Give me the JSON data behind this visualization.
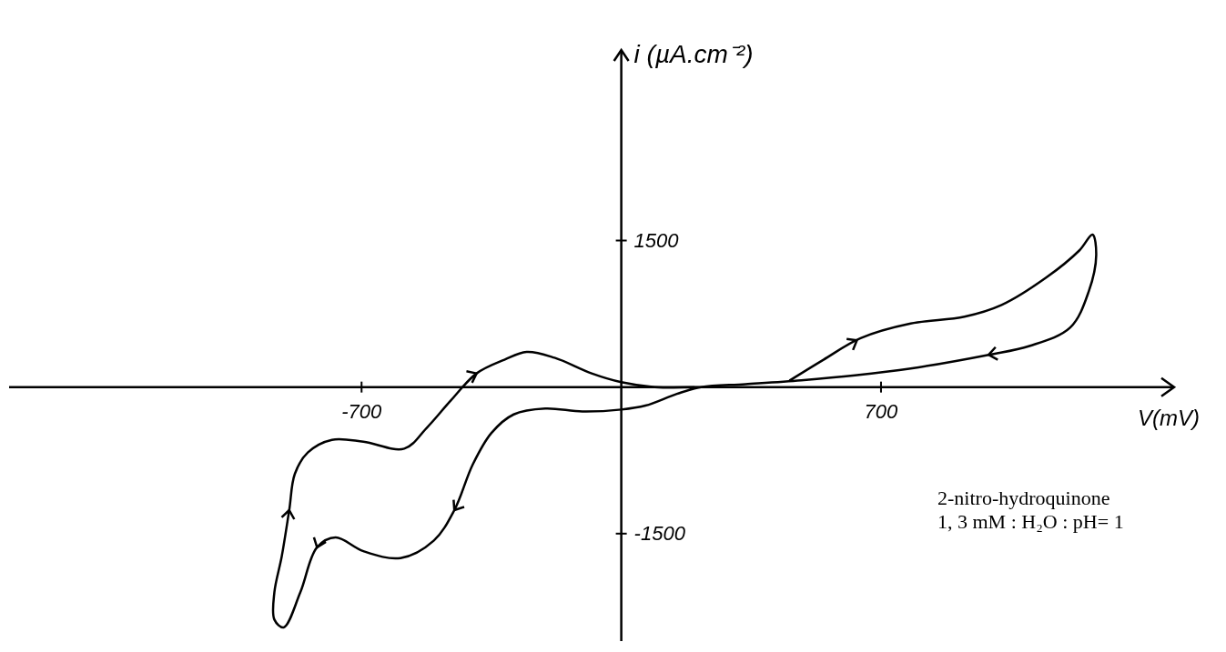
{
  "chart_data": {
    "type": "line",
    "xlabel": "V(mV)",
    "ylabel": "i (µA.cm⁻²)",
    "xlim": [
      -1650,
      1490
    ],
    "ylim": [
      -2600,
      3450
    ],
    "xticks": [
      -700,
      700
    ],
    "yticks": [
      1500,
      -1500
    ],
    "color": "#000000",
    "grid": false,
    "x": [
      455,
      545,
      645,
      780,
      925,
      1025,
      1145,
      1235,
      1270,
      1280,
      1260,
      1210,
      1100,
      990,
      780,
      630,
      485,
      335,
      215,
      150,
      65,
      0,
      -105,
      -205,
      -290,
      -350,
      -400,
      -450,
      -505,
      -595,
      -695,
      -770,
      -820,
      -865,
      -910,
      -935,
      -935,
      -915,
      -895,
      -880,
      -845,
      -780,
      -695,
      -585,
      -525,
      -460,
      -390,
      -315,
      -255,
      -180,
      -80,
      0,
      90,
      215
    ],
    "values": [
      70,
      280,
      500,
      650,
      720,
      840,
      1120,
      1400,
      1560,
      1350,
      980,
      610,
      420,
      330,
      190,
      120,
      70,
      30,
      0,
      -70,
      -190,
      -230,
      -250,
      -220,
      -280,
      -470,
      -790,
      -1260,
      -1570,
      -1750,
      -1680,
      -1540,
      -1640,
      -2100,
      -2460,
      -2380,
      -2100,
      -1730,
      -1260,
      -890,
      -670,
      -540,
      -560,
      -630,
      -420,
      -140,
      140,
      280,
      360,
      300,
      140,
      50,
      0,
      0
    ],
    "annotations": [
      "2-nitro-hydroquinone",
      "1, 3 mM : H₂O : pH= 1"
    ]
  }
}
